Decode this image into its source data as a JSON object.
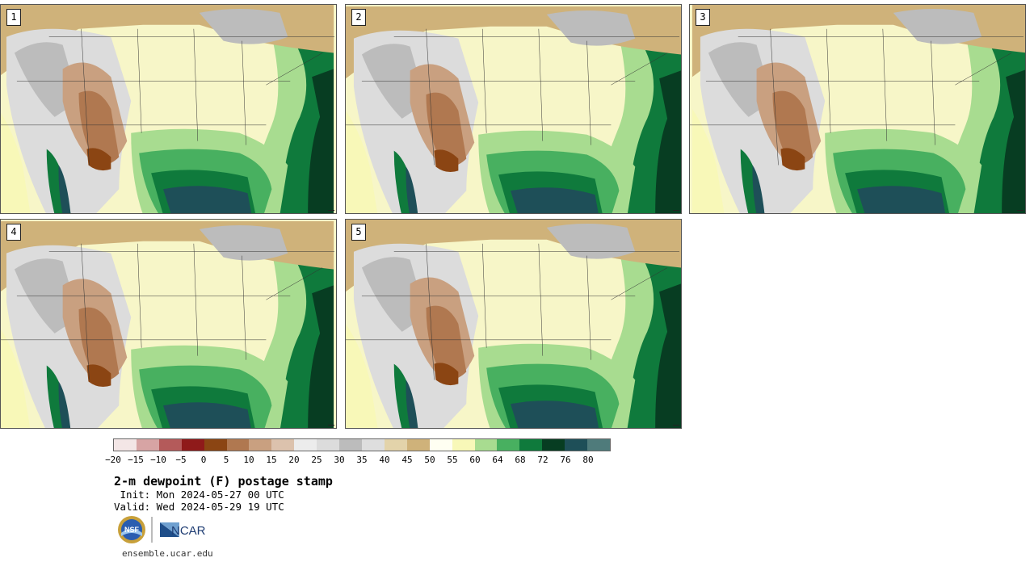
{
  "panels": [
    {
      "label": "1"
    },
    {
      "label": "2"
    },
    {
      "label": "3"
    },
    {
      "label": "4"
    },
    {
      "label": "5"
    }
  ],
  "colorbar": {
    "ticks": [
      "−20",
      "−15",
      "−10",
      "−5",
      "0",
      "5",
      "10",
      "15",
      "20",
      "25",
      "30",
      "35",
      "40",
      "45",
      "50",
      "55",
      "60",
      "64",
      "68",
      "72",
      "76",
      "80"
    ],
    "colors": [
      "#f3e6e6",
      "#d7a4a4",
      "#b45a5a",
      "#8f1a1a",
      "#8b4513",
      "#b07850",
      "#c9a080",
      "#dcc2ad",
      "#ececec",
      "#dcdcdc",
      "#bcbcbc",
      "#dedede",
      "#e3d3aa",
      "#cfb27a",
      "#fffff2",
      "#f8f8b8",
      "#a8dc90",
      "#48b060",
      "#0f7a3c",
      "#073d22",
      "#1e4f58",
      "#4f7b7b"
    ]
  },
  "title": "2-m dewpoint (F) postage stamp",
  "init": " Init: Mon 2024-05-27 00 UTC",
  "valid": "Valid: Wed 2024-05-29 19 UTC",
  "logos": {
    "nsf": "NSF",
    "ncar": "NCAR"
  },
  "url": "ensemble.ucar.edu"
}
